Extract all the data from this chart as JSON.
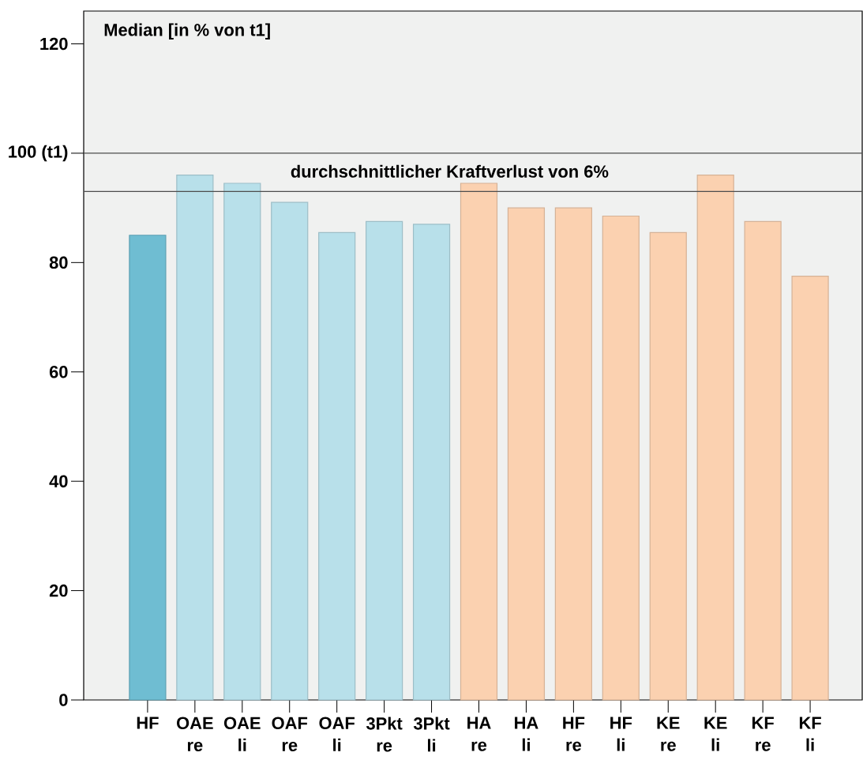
{
  "chart_data": {
    "type": "bar",
    "ylabel": "Median [in % von t1]",
    "categories": [
      "HF",
      "OAE re",
      "OAE li",
      "OAF re",
      "OAF li",
      "3Pkt re",
      "3Pkt li",
      "HA re",
      "HA li",
      "HF re",
      "HF li",
      "KE re",
      "KE li",
      "KF re",
      "KF li"
    ],
    "values": [
      85,
      96,
      94.5,
      91,
      85.5,
      87.5,
      87,
      94.5,
      90,
      90,
      88.5,
      85.5,
      96,
      87.5,
      77.5
    ],
    "colors": [
      "#6fbdd2",
      "#b8e0ea",
      "#b8e0ea",
      "#b8e0ea",
      "#b8e0ea",
      "#b8e0ea",
      "#b8e0ea",
      "#fbd1b0",
      "#fbd1b0",
      "#fbd1b0",
      "#fbd1b0",
      "#fbd1b0",
      "#fbd1b0",
      "#fbd1b0",
      "#fbd1b0"
    ],
    "ylim": [
      0,
      126
    ],
    "yticks": [
      0,
      20,
      40,
      60,
      80,
      {
        "value": 100,
        "label": "100 (t1)"
      },
      120
    ],
    "ref_lines": [
      {
        "axis": "y",
        "value": 100,
        "color": "#4d4d4d"
      },
      {
        "axis": "y",
        "value": 93,
        "label": "durchschnittlicher Kraftverlust von 6%",
        "color": "#4d4d4d"
      }
    ]
  }
}
